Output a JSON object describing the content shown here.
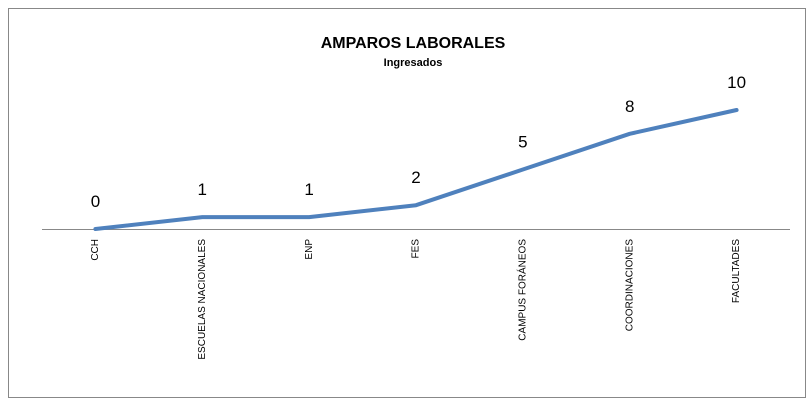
{
  "chart_data": {
    "type": "line",
    "title": "AMPAROS LABORALES",
    "subtitle": "Ingresados",
    "categories": [
      "CCH",
      "ESCUELAS NACIONALES",
      "ENP",
      "FES",
      "CAMPUS FORÁNEOS",
      "COORDINACIONES",
      "FACULTADES"
    ],
    "values": [
      0,
      1,
      1,
      2,
      5,
      8,
      10
    ],
    "color": "#4f81bd",
    "ylim": [
      0,
      10
    ]
  }
}
